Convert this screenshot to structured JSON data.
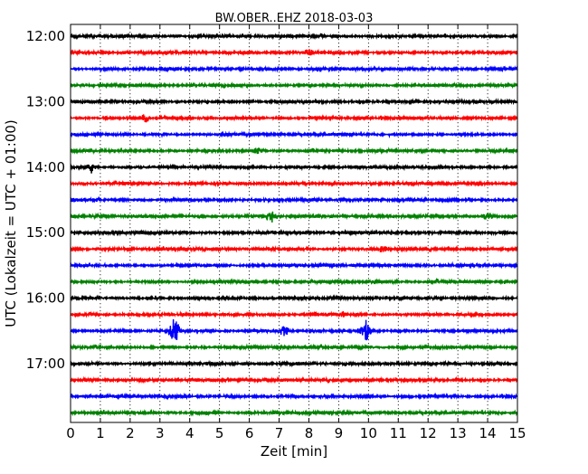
{
  "chart_data": {
    "type": "line",
    "title": "BW.OBER..EHZ 2018-03-03",
    "xlabel": "Zeit  [min]",
    "ylabel": "UTC (Lokalzeit = UTC + 01:00)",
    "xlim": [
      0,
      15
    ],
    "x_ticks": [
      "0",
      "1",
      "2",
      "3",
      "4",
      "5",
      "6",
      "7",
      "8",
      "9",
      "10",
      "11",
      "12",
      "13",
      "14",
      "15"
    ],
    "y_tick_labels": [
      "12:00",
      "13:00",
      "14:00",
      "15:00",
      "16:00",
      "17:00"
    ],
    "grid": "vertical-dotted",
    "trace_colors": [
      "#000000",
      "#ff0000",
      "#0000ff",
      "#008000"
    ],
    "trace_offsets_min": [
      0,
      15,
      30,
      45,
      60,
      75,
      90,
      105,
      120,
      135,
      150,
      165,
      180,
      195,
      210,
      225,
      240,
      255,
      270,
      285,
      300,
      315,
      330,
      345
    ],
    "events": [
      {
        "trace": 18,
        "x": 3.5,
        "amp": 2.6
      },
      {
        "trace": 18,
        "x": 9.9,
        "amp": 2.2
      },
      {
        "trace": 18,
        "x": 7.2,
        "amp": 1.1
      },
      {
        "trace": 11,
        "x": 6.7,
        "amp": 0.9
      },
      {
        "trace": 11,
        "x": 14.0,
        "amp": 0.8
      },
      {
        "trace": 5,
        "x": 2.5,
        "amp": 0.8
      },
      {
        "trace": 7,
        "x": 6.3,
        "amp": 0.8
      },
      {
        "trace": 8,
        "x": 0.7,
        "amp": 0.8
      },
      {
        "trace": 13,
        "x": 10.5,
        "amp": 0.7
      },
      {
        "trace": 17,
        "x": 9.1,
        "amp": 0.8
      },
      {
        "trace": 1,
        "x": 8.0,
        "amp": 0.8
      }
    ]
  }
}
